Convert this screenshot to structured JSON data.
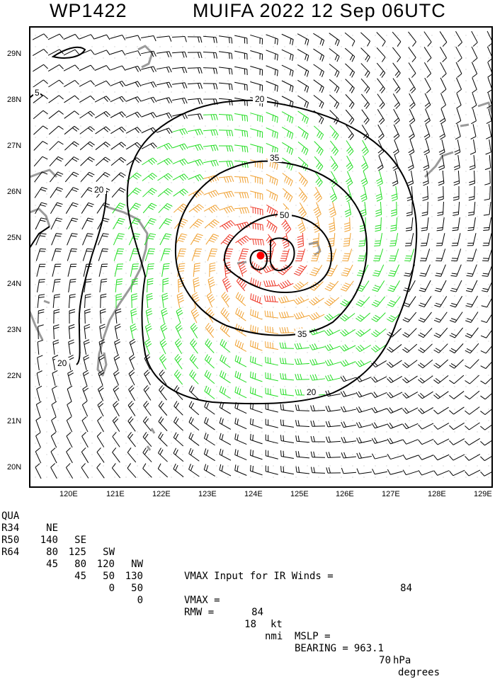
{
  "header": {
    "storm_id": "WP1422",
    "storm_name": "MUIFA",
    "year": "2022",
    "date": "12 Sep",
    "time": "06UTC"
  },
  "map": {
    "lat_labels": [
      "29N",
      "28N",
      "27N",
      "26N",
      "25N",
      "24N",
      "23N",
      "22N",
      "21N",
      "20N"
    ],
    "lon_labels": [
      "120E",
      "121E",
      "122E",
      "123E",
      "124E",
      "125E",
      "126E",
      "127E",
      "128E",
      "129E"
    ],
    "contour_labels": [
      "5",
      "20",
      "20",
      "20",
      "20",
      "35",
      "35",
      "50"
    ],
    "colors": {
      "coast": "#9a9a9a",
      "barb_black": "#000000",
      "barb_green": "#22dd22",
      "barb_orange": "#f0a030",
      "barb_red": "#ee3322",
      "center": "#ff0000"
    },
    "center_marker": "storm-center-icon"
  },
  "footer": {
    "table": {
      "headers": [
        "QUA",
        "NE",
        "SE",
        "SW",
        "NW"
      ],
      "rows": [
        [
          "R34",
          "140",
          "125",
          "120",
          "130"
        ],
        [
          "R50",
          "80",
          "80",
          "50",
          "50"
        ],
        [
          "R64",
          "45",
          "45",
          "0",
          "0"
        ]
      ]
    },
    "vmax_ir_label": "VMAX Input for IR Winds =",
    "vmax_ir_value": "84",
    "vmax_label": "VMAX =",
    "vmax_value": "84",
    "vmax_unit": "kt",
    "mslp_label": "MSLP =",
    "mslp_value": "963.1",
    "mslp_unit": "hPa",
    "rmw_label": "RMW =",
    "rmw_value": "18",
    "rmw_unit": "nmi",
    "bearing_label": "BEARING =",
    "bearing_value": "70",
    "bearing_unit": "degrees"
  }
}
